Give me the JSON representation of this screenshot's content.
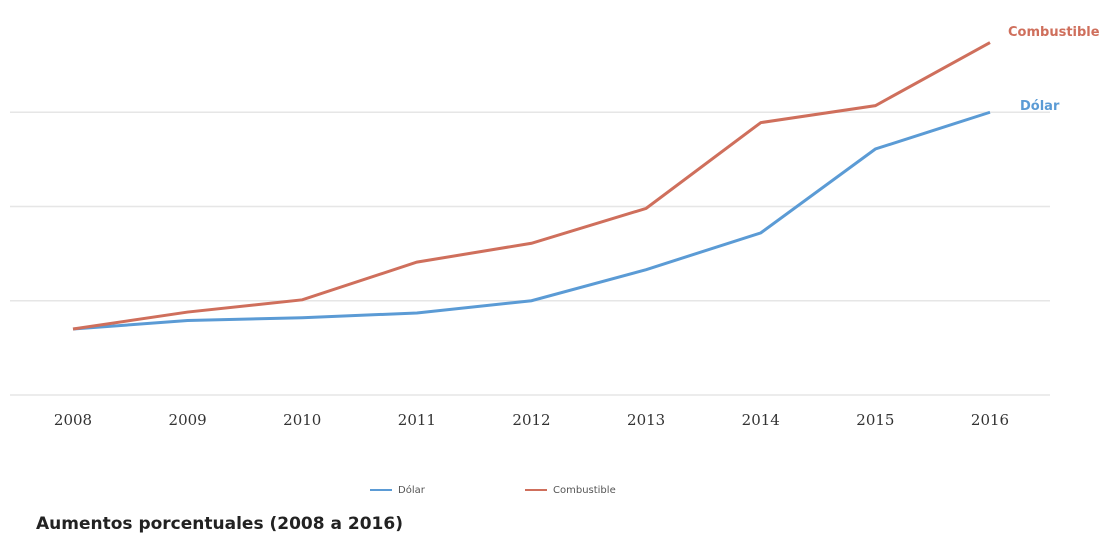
{
  "chart_data": {
    "type": "line",
    "title": "Aumentos porcentuales (2008 a 2016)",
    "categories": [
      "2008",
      "2009",
      "2010",
      "2011",
      "2012",
      "2013",
      "2014",
      "2015",
      "2016"
    ],
    "series": [
      {
        "name": "Dólar",
        "color": "#5b9bd5",
        "values": [
          0.7,
          0.79,
          0.82,
          0.87,
          1.0,
          1.33,
          1.72,
          2.61,
          3.0
        ]
      },
      {
        "name": "Combustible",
        "color": "#cf6f5c",
        "values": [
          0.7,
          0.88,
          1.01,
          1.41,
          1.61,
          1.98,
          2.89,
          3.07,
          3.74
        ]
      }
    ],
    "ylim": [
      0,
      4
    ],
    "yticks": [
      0,
      1,
      2,
      3
    ],
    "grid": true,
    "legend": "bottom"
  }
}
